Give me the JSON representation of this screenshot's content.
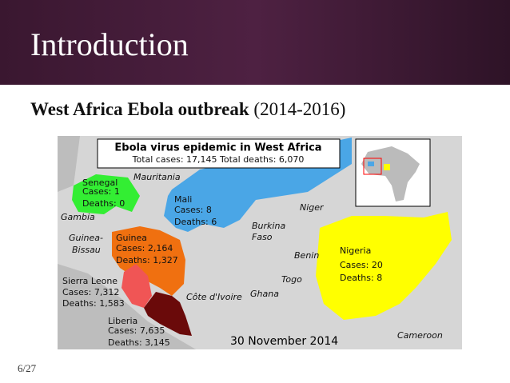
{
  "header": {
    "title": "Introduction"
  },
  "subtitle": {
    "bold": "West Africa Ebola outbreak",
    "rest": "(2014-2016)"
  },
  "map": {
    "title": "Ebola virus epidemic in West Africa",
    "summary": "Total cases: 17,145 Total deaths: 6,070",
    "date": "30 November 2014",
    "affected": [
      {
        "name": "Senegal",
        "cases": "Cases: 1",
        "deaths": "Deaths: 0"
      },
      {
        "name": "Mali",
        "cases": "Cases: 8",
        "deaths": "Deaths: 6"
      },
      {
        "name": "Guinea",
        "cases": "Cases: 2,164",
        "deaths": "Deaths: 1,327"
      },
      {
        "name": "Sierra Leone",
        "cases": "Cases: 7,312",
        "deaths": "Deaths: 1,583"
      },
      {
        "name": "Liberia",
        "cases": "Cases: 7,635",
        "deaths": "Deaths: 3,145"
      },
      {
        "name": "Nigeria",
        "cases": "Cases: 20",
        "deaths": "Deaths: 8"
      }
    ],
    "others": [
      "Mauritania",
      "Gambia",
      "Guinea-",
      "Bissau",
      "Niger",
      "Burkina",
      "Faso",
      "Benin",
      "Togo",
      "Côte d'Ivoire",
      "Ghana",
      "Cameroon"
    ]
  },
  "footer": {
    "page": "6/27"
  }
}
